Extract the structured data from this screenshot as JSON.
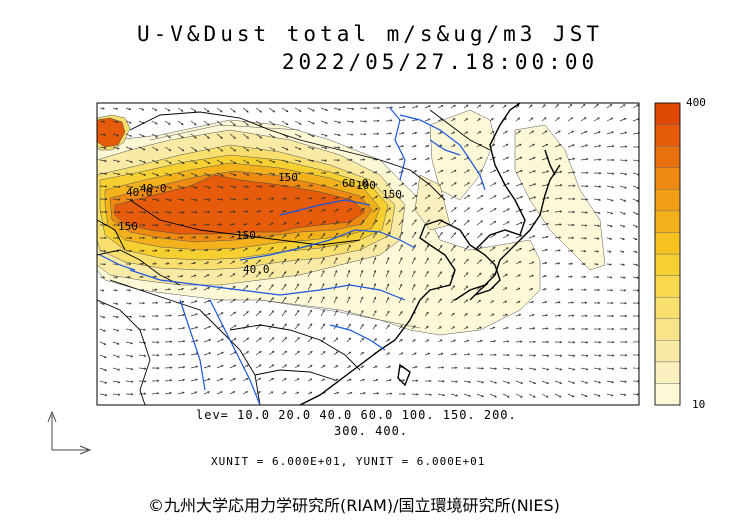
{
  "title": {
    "line1": "U-V&Dust total m/s&ug/m3 JST",
    "line2": "2022/05/27.18:00:00"
  },
  "colorbar": {
    "max_label": "400",
    "min_label": "10",
    "colors": [
      "#fdf8d6",
      "#fbf0bf",
      "#f9eba6",
      "#f8e58a",
      "#f8df6e",
      "#f7d84e",
      "#f6d030",
      "#f5c222",
      "#f3b21c",
      "#f19f16",
      "#ee8a12",
      "#ea720e",
      "#e65c0a",
      "#e04806"
    ]
  },
  "contour_labels": [
    "40.0",
    "150",
    "150",
    "150",
    "60.0",
    "100",
    "150",
    "40.0",
    "40.0"
  ],
  "legend": {
    "levels_line1": "lev= 10.0 20.0 40.0 60.0 100. 150. 200.",
    "levels_line2": "300. 400."
  },
  "units_text": "XUNIT = 6.000E+01, YUNIT = 6.000E+01",
  "copyright": "©九州大学応用力学研究所(RIAM)/国立環境研究所(NIES)"
}
